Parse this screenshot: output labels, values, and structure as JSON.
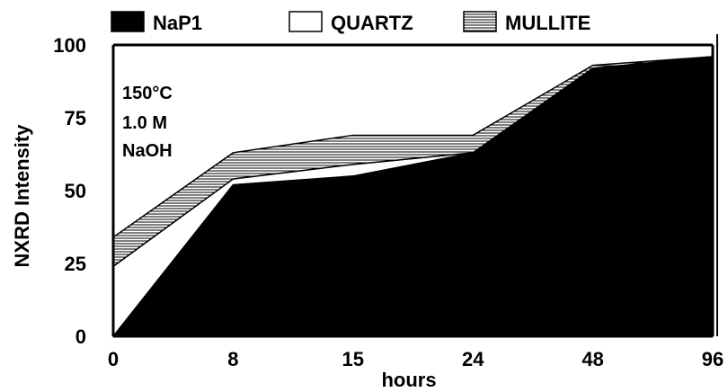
{
  "chart_data": {
    "type": "area",
    "stacked": true,
    "xlabel": "hours",
    "ylabel": "NXRD Intensity",
    "categories": [
      "0",
      "8",
      "15",
      "24",
      "48",
      "96"
    ],
    "ylim": [
      0,
      100
    ],
    "yticks": [
      "0",
      "25",
      "50",
      "75",
      "100"
    ],
    "grid": false,
    "legend_position": "top",
    "series": [
      {
        "name": "NaP1",
        "values": [
          0,
          52,
          55,
          63,
          92,
          96
        ],
        "fill": "#000000",
        "pattern": "solid"
      },
      {
        "name": "QUARTZ",
        "values": [
          24,
          2,
          4,
          0,
          0,
          0
        ],
        "fill": "#ffffff",
        "pattern": "blank"
      },
      {
        "name": "MULLITE",
        "values": [
          10,
          9,
          10,
          6,
          1,
          0
        ],
        "fill": "#ffffff",
        "pattern": "horizontal-lines"
      }
    ],
    "annotations": [
      "150°C",
      "1.0 M",
      "NaOH"
    ]
  }
}
